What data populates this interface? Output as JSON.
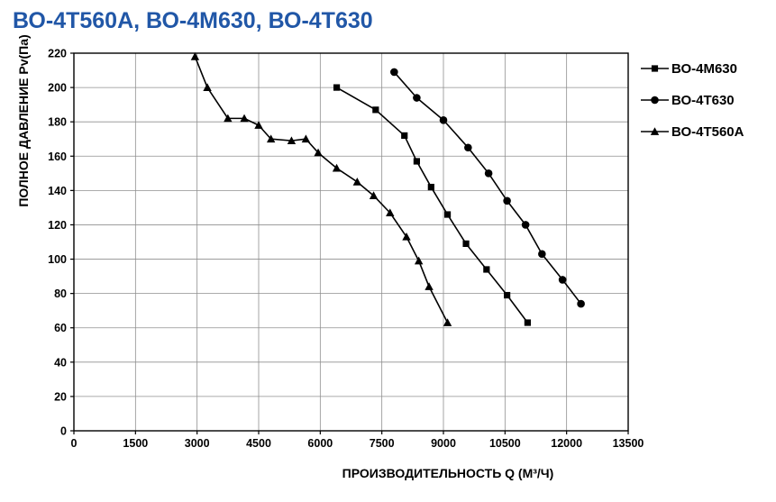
{
  "title": "ВО-4Т560А, ВО-4М630, ВО-4Т630",
  "title_color": "#2157a7",
  "chart_data": {
    "type": "line",
    "title": "ВО-4Т560А, ВО-4М630, ВО-4Т630",
    "xlabel": "ПРОИЗВОДИТЕЛЬНОСТЬ   Q  (М³/Ч)",
    "ylabel": "ПОЛНОЕ ДАВЛЕНИЕ  Pv(Па)",
    "xlim": [
      0,
      13500
    ],
    "ylim": [
      0,
      220
    ],
    "x_ticks": [
      0,
      1500,
      3000,
      4500,
      6000,
      7500,
      9000,
      10500,
      12000,
      13500
    ],
    "y_ticks": [
      0,
      20,
      40,
      60,
      80,
      100,
      120,
      140,
      160,
      180,
      200,
      220
    ],
    "grid": true,
    "grid_color": "#8f8f8f",
    "line_color": "#000000",
    "legend_position": "right-top",
    "series": [
      {
        "name": "ВО-4М630",
        "marker": "square",
        "points": [
          [
            6400,
            200
          ],
          [
            7350,
            187
          ],
          [
            8050,
            172
          ],
          [
            8350,
            157
          ],
          [
            8700,
            142
          ],
          [
            9100,
            126
          ],
          [
            9550,
            109
          ],
          [
            10050,
            94
          ],
          [
            10550,
            79
          ],
          [
            11050,
            63
          ]
        ]
      },
      {
        "name": "ВО-4Т630",
        "marker": "circle",
        "points": [
          [
            7800,
            209
          ],
          [
            8350,
            194
          ],
          [
            9000,
            181
          ],
          [
            9600,
            165
          ],
          [
            10100,
            150
          ],
          [
            10550,
            134
          ],
          [
            11000,
            120
          ],
          [
            11400,
            103
          ],
          [
            11900,
            88
          ],
          [
            12350,
            74
          ]
        ]
      },
      {
        "name": "ВО-4Т560А",
        "marker": "triangle",
        "points": [
          [
            2950,
            218
          ],
          [
            3250,
            200
          ],
          [
            3750,
            182
          ],
          [
            4150,
            182
          ],
          [
            4500,
            178
          ],
          [
            4800,
            170
          ],
          [
            5300,
            169
          ],
          [
            5650,
            170
          ],
          [
            5950,
            162
          ],
          [
            6400,
            153
          ],
          [
            6900,
            145
          ],
          [
            7300,
            137
          ],
          [
            7700,
            127
          ],
          [
            8100,
            113
          ],
          [
            8400,
            99
          ],
          [
            8650,
            84
          ],
          [
            9100,
            63
          ]
        ]
      }
    ]
  }
}
